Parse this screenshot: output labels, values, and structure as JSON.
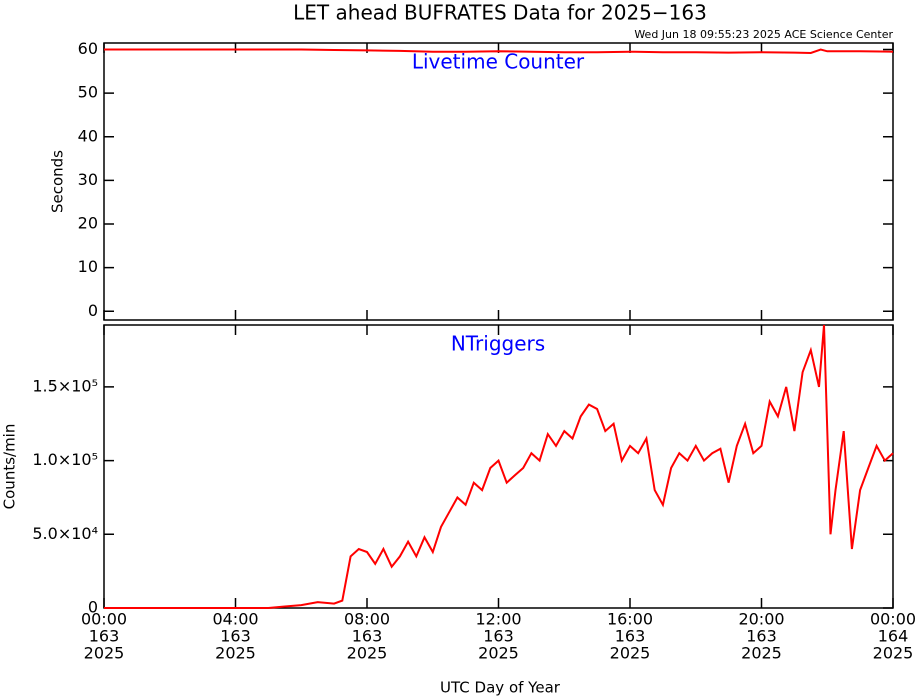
{
  "chart_data": [
    {
      "type": "line",
      "title": "LET ahead BUFRATES Data for 2025−163",
      "subtitle": "Wed Jun 18 09:55:23 2025 ACE Science Center",
      "annotation": "Livetime Counter",
      "ylabel": "Seconds",
      "x": [
        0,
        1,
        2,
        3,
        4,
        5,
        6,
        7,
        8,
        9,
        10,
        11,
        12,
        13,
        14,
        15,
        16,
        17,
        18,
        19,
        20,
        21,
        21.5,
        21.8,
        22,
        23,
        24
      ],
      "series": [
        {
          "name": "Livetime Counter",
          "color": "#ff0000",
          "values": [
            60,
            60,
            60,
            60,
            60,
            60,
            60,
            59.9,
            59.8,
            59.7,
            59.5,
            59.5,
            59.6,
            59.5,
            59.4,
            59.4,
            59.5,
            59.4,
            59.4,
            59.3,
            59.4,
            59.3,
            59.2,
            60,
            59.6,
            59.6,
            59.5
          ]
        }
      ],
      "xlim": [
        0,
        24
      ],
      "ylim": [
        -2,
        61.5
      ],
      "yticks": [
        0,
        10,
        20,
        30,
        40,
        50,
        60
      ]
    },
    {
      "type": "line",
      "annotation": "NTriggers",
      "ylabel": "Counts/min",
      "xlabel": "UTC Day of Year",
      "x": [
        0,
        1,
        2,
        3,
        4,
        5,
        5.5,
        6,
        6.5,
        7,
        7.25,
        7.5,
        7.75,
        8,
        8.25,
        8.5,
        8.75,
        9,
        9.25,
        9.5,
        9.75,
        10,
        10.25,
        10.5,
        10.75,
        11,
        11.25,
        11.5,
        11.75,
        12,
        12.25,
        12.5,
        12.75,
        13,
        13.25,
        13.5,
        13.75,
        14,
        14.25,
        14.5,
        14.75,
        15,
        15.25,
        15.5,
        15.75,
        16,
        16.25,
        16.5,
        16.75,
        17,
        17.25,
        17.5,
        17.75,
        18,
        18.25,
        18.5,
        18.75,
        19,
        19.25,
        19.5,
        19.75,
        20,
        20.25,
        20.5,
        20.75,
        21,
        21.25,
        21.5,
        21.75,
        21.9,
        22.1,
        22.25,
        22.5,
        22.75,
        23,
        23.25,
        23.5,
        23.75,
        24
      ],
      "series": [
        {
          "name": "NTriggers",
          "color": "#ff0000",
          "values": [
            0,
            0,
            0,
            0,
            0,
            0,
            1000,
            2000,
            4000,
            3000,
            5000,
            35000,
            40000,
            38000,
            30000,
            40000,
            28000,
            35000,
            45000,
            35000,
            48000,
            38000,
            55000,
            65000,
            75000,
            70000,
            85000,
            80000,
            95000,
            100000,
            85000,
            90000,
            95000,
            105000,
            100000,
            118000,
            110000,
            120000,
            115000,
            130000,
            138000,
            135000,
            120000,
            125000,
            100000,
            110000,
            105000,
            115000,
            80000,
            70000,
            95000,
            105000,
            100000,
            110000,
            100000,
            105000,
            108000,
            85000,
            110000,
            125000,
            105000,
            110000,
            140000,
            130000,
            150000,
            120000,
            160000,
            175000,
            150000,
            192000,
            50000,
            80000,
            120000,
            40000,
            80000,
            95000,
            110000,
            100000,
            105000
          ]
        }
      ],
      "xlim": [
        0,
        24
      ],
      "ylim": [
        0,
        192000
      ],
      "yticks": [
        0,
        {
          "value": 50000,
          "label": "5.0×10⁴"
        },
        {
          "value": 100000,
          "label": "1.0×10⁵"
        },
        {
          "value": 150000,
          "label": "1.5×10⁵"
        }
      ],
      "xticks": [
        {
          "value": 0,
          "label": [
            "00:00",
            "163",
            "2025"
          ]
        },
        {
          "value": 4,
          "label": [
            "04:00",
            "163",
            "2025"
          ]
        },
        {
          "value": 8,
          "label": [
            "08:00",
            "163",
            "2025"
          ]
        },
        {
          "value": 12,
          "label": [
            "12:00",
            "163",
            "2025"
          ]
        },
        {
          "value": 16,
          "label": [
            "16:00",
            "163",
            "2025"
          ]
        },
        {
          "value": 20,
          "label": [
            "20:00",
            "163",
            "2025"
          ]
        },
        {
          "value": 24,
          "label": [
            "00:00",
            "164",
            "2025"
          ]
        }
      ]
    }
  ]
}
